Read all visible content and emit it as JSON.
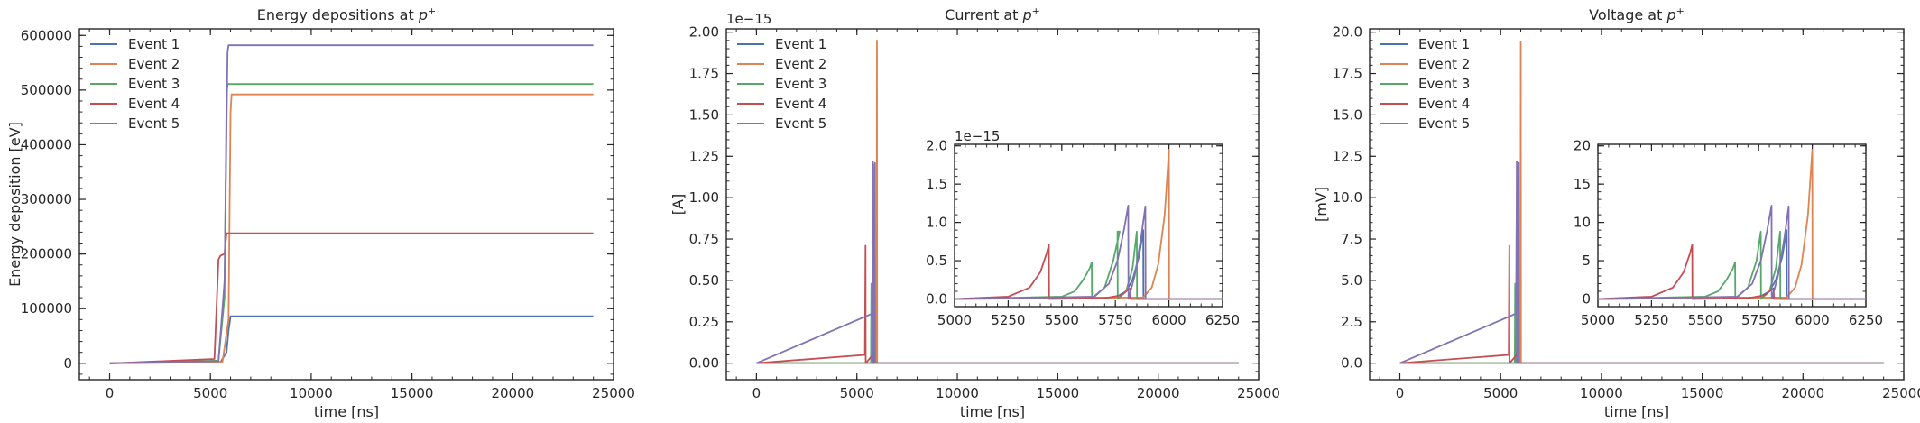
{
  "colors": {
    "Event 1": "#4c72b0",
    "Event 2": "#dd8452",
    "Event 3": "#55a868",
    "Event 4": "#c44e52",
    "Event 5": "#8172b3"
  },
  "chart_data": [
    {
      "type": "line",
      "title_text": "Energy depositions at ",
      "title_math": "p",
      "title_sup": "+",
      "xlabel": "time [ns]",
      "ylabel": "Energy deposition [eV]",
      "xlim": [
        -1500,
        25000
      ],
      "ylim": [
        -30000,
        612000
      ],
      "xticks": [
        0,
        5000,
        10000,
        15000,
        20000,
        25000
      ],
      "xtick_labels": [
        "0",
        "5000",
        "10000",
        "15000",
        "20000",
        "25000"
      ],
      "yticks": [
        0,
        100000,
        200000,
        300000,
        400000,
        500000,
        600000
      ],
      "ytick_labels": [
        "0",
        "100000",
        "200000",
        "300000",
        "400000",
        "500000",
        "600000"
      ],
      "legend": "top-left",
      "grid": false,
      "series": [
        {
          "name": "Event 1",
          "x": [
            0,
            5500,
            5800,
            5900,
            6000,
            24000
          ],
          "y": [
            0,
            2000,
            20000,
            60000,
            86000,
            86000
          ]
        },
        {
          "name": "Event 2",
          "x": [
            0,
            5600,
            5900,
            6000,
            6050,
            24000
          ],
          "y": [
            0,
            3000,
            80000,
            460000,
            492000,
            492000
          ]
        },
        {
          "name": "Event 3",
          "x": [
            0,
            5400,
            5700,
            5800,
            5850,
            24000
          ],
          "y": [
            0,
            5000,
            120000,
            490000,
            511000,
            511000
          ]
        },
        {
          "name": "Event 4",
          "x": [
            0,
            5200,
            5400,
            5500,
            5700,
            5800,
            24000
          ],
          "y": [
            0,
            8000,
            190000,
            197000,
            200000,
            238000,
            238000
          ]
        },
        {
          "name": "Event 5",
          "x": [
            0,
            5400,
            5700,
            5850,
            5900,
            24000
          ],
          "y": [
            0,
            4000,
            150000,
            570000,
            582000,
            582000
          ]
        }
      ]
    },
    {
      "type": "line",
      "title_text": "Current at ",
      "title_math": "p",
      "title_sup": "+",
      "xlabel": "time [ns]",
      "ylabel": "[A]",
      "offset": "1e−15",
      "xlim": [
        -1500,
        25000
      ],
      "ylim": [
        -0.1,
        2.02
      ],
      "xticks": [
        0,
        5000,
        10000,
        15000,
        20000,
        25000
      ],
      "xtick_labels": [
        "0",
        "5000",
        "10000",
        "15000",
        "20000",
        "25000"
      ],
      "yticks": [
        0,
        0.25,
        0.5,
        0.75,
        1.0,
        1.25,
        1.5,
        1.75,
        2.0
      ],
      "ytick_labels": [
        "0.00",
        "0.25",
        "0.50",
        "0.75",
        "1.00",
        "1.25",
        "1.50",
        "1.75",
        "2.00"
      ],
      "legend": "top-left",
      "grid": false,
      "series": [
        {
          "name": "Event 1",
          "x": [
            0,
            5880,
            5890,
            5900,
            24000
          ],
          "y": [
            0,
            0,
            1.2,
            0,
            0
          ]
        },
        {
          "name": "Event 2",
          "x": [
            0,
            5980,
            6000,
            6010,
            24000
          ],
          "y": [
            0,
            0,
            1.95,
            0,
            0
          ]
        },
        {
          "name": "Event 3",
          "x": [
            0,
            5700,
            5720,
            5730,
            5760,
            5790,
            5800,
            24000
          ],
          "y": [
            0,
            0,
            0.48,
            0,
            0.2,
            0.88,
            0,
            0
          ]
        },
        {
          "name": "Event 4",
          "x": [
            0,
            5400,
            5430,
            5440,
            5800,
            5820,
            5830,
            24000
          ],
          "y": [
            0,
            0.05,
            0.71,
            0,
            0.05,
            0.14,
            0,
            0
          ]
        },
        {
          "name": "Event 5",
          "x": [
            0,
            5780,
            5800,
            5810,
            5880,
            5900,
            5910,
            24000
          ],
          "y": [
            0,
            0.3,
            1.22,
            0,
            0.4,
            1.21,
            0,
            0
          ]
        }
      ],
      "inset": {
        "offset": "1e−15",
        "xlim": [
          5000,
          6250
        ],
        "ylim": [
          -0.1,
          2.02
        ],
        "xticks": [
          5000,
          5250,
          5500,
          5750,
          6000,
          6250
        ],
        "xtick_labels": [
          "5000",
          "5250",
          "5500",
          "5750",
          "6000",
          "6250"
        ],
        "yticks": [
          0,
          0.5,
          1.0,
          1.5,
          2.0
        ],
        "ytick_labels": [
          "0.0",
          "0.5",
          "1.0",
          "1.5",
          "2.0"
        ],
        "series": [
          {
            "name": "Event 1",
            "x": [
              5000,
              5750,
              5800,
              5830,
              5860,
              5880,
              5881,
              6250
            ],
            "y": [
              0,
              0.02,
              0.1,
              0.25,
              0.55,
              0.9,
              0,
              0
            ]
          },
          {
            "name": "Event 2",
            "x": [
              5000,
              5880,
              5920,
              5950,
              5980,
              6000,
              6001,
              6250
            ],
            "y": [
              0,
              0.02,
              0.15,
              0.45,
              1.1,
              1.95,
              0,
              0
            ]
          },
          {
            "name": "Event 3",
            "x": [
              5000,
              5500,
              5560,
              5600,
              5630,
              5640,
              5641,
              5700,
              5740,
              5770,
              5760,
              5761,
              5800,
              5830,
              5850,
              5851,
              6250
            ],
            "y": [
              0,
              0.03,
              0.1,
              0.25,
              0.4,
              0.48,
              0,
              0.15,
              0.5,
              0.88,
              0.88,
              0,
              0.1,
              0.4,
              0.88,
              0,
              0
            ]
          },
          {
            "name": "Event 4",
            "x": [
              5000,
              5250,
              5350,
              5400,
              5430,
              5440,
              5441,
              5700,
              5780,
              5800,
              5820,
              5821,
              6250
            ],
            "y": [
              0,
              0.03,
              0.15,
              0.35,
              0.6,
              0.71,
              0,
              0.01,
              0.05,
              0.1,
              0.14,
              0,
              0
            ]
          },
          {
            "name": "Event 5",
            "x": [
              5000,
              5650,
              5720,
              5760,
              5790,
              5810,
              5811,
              5840,
              5870,
              5890,
              5891,
              6250
            ],
            "y": [
              0,
              0.03,
              0.2,
              0.5,
              0.9,
              1.22,
              0,
              0.3,
              0.8,
              1.21,
              0,
              0
            ]
          }
        ]
      }
    },
    {
      "type": "line",
      "title_text": "Voltage at ",
      "title_math": "p",
      "title_sup": "+",
      "xlabel": "time [ns]",
      "ylabel": "[mV]",
      "xlim": [
        -1500,
        25000
      ],
      "ylim": [
        -1.0,
        20.2
      ],
      "xticks": [
        0,
        5000,
        10000,
        15000,
        20000,
        25000
      ],
      "xtick_labels": [
        "0",
        "5000",
        "10000",
        "15000",
        "20000",
        "25000"
      ],
      "yticks": [
        0,
        2.5,
        5.0,
        7.5,
        10.0,
        12.5,
        15.0,
        17.5,
        20.0
      ],
      "ytick_labels": [
        "0.0",
        "2.5",
        "5.0",
        "7.5",
        "10.0",
        "12.5",
        "15.0",
        "17.5",
        "20.0"
      ],
      "legend": "top-left",
      "grid": false,
      "series": [
        {
          "name": "Event 1",
          "x": [
            0,
            5880,
            5890,
            5900,
            24000
          ],
          "y": [
            0,
            0,
            12.0,
            0,
            0
          ]
        },
        {
          "name": "Event 2",
          "x": [
            0,
            5980,
            6000,
            6010,
            24000
          ],
          "y": [
            0,
            0,
            19.4,
            0,
            0
          ]
        },
        {
          "name": "Event 3",
          "x": [
            0,
            5700,
            5720,
            5730,
            5760,
            5790,
            5800,
            24000
          ],
          "y": [
            0,
            0,
            4.8,
            0,
            2.0,
            8.8,
            0,
            0
          ]
        },
        {
          "name": "Event 4",
          "x": [
            0,
            5400,
            5430,
            5440,
            5800,
            5820,
            5830,
            24000
          ],
          "y": [
            0,
            0.5,
            7.1,
            0,
            0.5,
            1.4,
            0,
            0
          ]
        },
        {
          "name": "Event 5",
          "x": [
            0,
            5780,
            5800,
            5810,
            5880,
            5900,
            5910,
            24000
          ],
          "y": [
            0,
            3.0,
            12.2,
            0,
            4.0,
            12.1,
            0,
            0
          ]
        }
      ],
      "inset": {
        "xlim": [
          5000,
          6250
        ],
        "ylim": [
          -1.0,
          20.2
        ],
        "xticks": [
          5000,
          5250,
          5500,
          5750,
          6000,
          6250
        ],
        "xtick_labels": [
          "5000",
          "5250",
          "5500",
          "5750",
          "6000",
          "6250"
        ],
        "yticks": [
          0,
          5,
          10,
          15,
          20
        ],
        "ytick_labels": [
          "0",
          "5",
          "10",
          "15",
          "20"
        ],
        "series": [
          {
            "name": "Event 1",
            "x": [
              5000,
              5750,
              5800,
              5830,
              5860,
              5880,
              5881,
              6250
            ],
            "y": [
              0,
              0.2,
              1.0,
              2.5,
              5.5,
              9.0,
              0,
              0
            ]
          },
          {
            "name": "Event 2",
            "x": [
              5000,
              5880,
              5920,
              5950,
              5980,
              6000,
              6001,
              6250
            ],
            "y": [
              0,
              0.2,
              1.5,
              4.5,
              11.0,
              19.5,
              0,
              0
            ]
          },
          {
            "name": "Event 3",
            "x": [
              5000,
              5500,
              5560,
              5600,
              5630,
              5640,
              5641,
              5700,
              5740,
              5760,
              5761,
              5800,
              5830,
              5850,
              5851,
              6250
            ],
            "y": [
              0,
              0.3,
              1.0,
              2.5,
              4.0,
              4.8,
              0,
              1.5,
              5.0,
              8.8,
              0,
              1.0,
              4.0,
              8.8,
              0,
              0
            ]
          },
          {
            "name": "Event 4",
            "x": [
              5000,
              5250,
              5350,
              5400,
              5430,
              5440,
              5441,
              5700,
              5780,
              5800,
              5820,
              5821,
              6250
            ],
            "y": [
              0,
              0.3,
              1.5,
              3.5,
              6.0,
              7.1,
              0,
              0.1,
              0.5,
              1.0,
              1.4,
              0,
              0
            ]
          },
          {
            "name": "Event 5",
            "x": [
              5000,
              5650,
              5720,
              5760,
              5790,
              5810,
              5811,
              5840,
              5870,
              5890,
              5891,
              6250
            ],
            "y": [
              0,
              0.3,
              2.0,
              5.0,
              9.0,
              12.2,
              0,
              3.0,
              8.0,
              12.1,
              0,
              0
            ]
          }
        ]
      }
    }
  ]
}
